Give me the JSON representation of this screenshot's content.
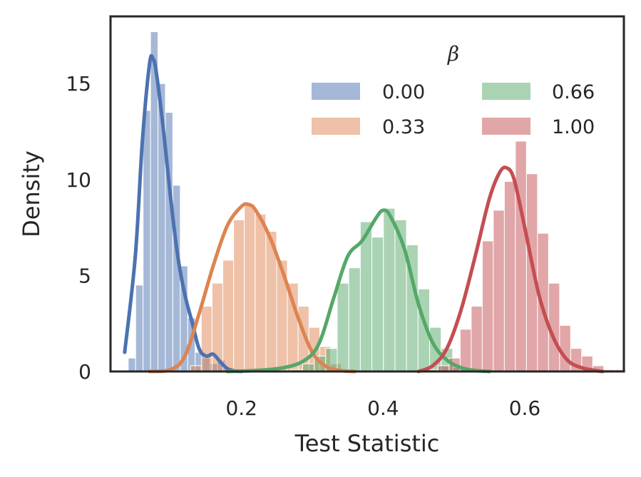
{
  "chart_data": {
    "type": "histogram",
    "xlabel": "Test Statistic",
    "ylabel": "Density",
    "xlim": [
      0.015,
      0.74
    ],
    "ylim": [
      0,
      18.5
    ],
    "xticks": [
      0.2,
      0.4,
      0.6
    ],
    "xtick_labels": [
      "0.2",
      "0.4",
      "0.6"
    ],
    "yticks": [
      0,
      5,
      10,
      15
    ],
    "ytick_labels": [
      "0",
      "5",
      "10",
      "15"
    ],
    "grid": false,
    "legend": {
      "title": "β",
      "placement": "top-right",
      "columns": 2,
      "entries": [
        "0.00",
        "0.33",
        "0.66",
        "1.00"
      ]
    },
    "series": [
      {
        "name": "0.00",
        "color": "#4c72b0",
        "bin_start": 0.04,
        "bin_width": 0.0105,
        "hist": [
          0.7,
          4.5,
          13.6,
          17.7,
          15.0,
          13.5,
          9.7,
          5.5,
          2.8,
          1.0,
          0.7,
          0.4,
          0.6,
          0.2,
          0.0,
          0.1
        ],
        "kde_x": [
          0.035,
          0.05,
          0.06,
          0.07,
          0.075,
          0.08,
          0.09,
          0.1,
          0.11,
          0.12,
          0.13,
          0.14,
          0.15,
          0.16,
          0.17,
          0.18,
          0.19,
          0.2
        ],
        "kde_y": [
          1.0,
          6.0,
          12.0,
          16.0,
          16.3,
          15.5,
          12.5,
          9.0,
          6.0,
          4.0,
          2.6,
          1.2,
          0.8,
          0.9,
          0.5,
          0.15,
          0.03,
          0.0
        ]
      },
      {
        "name": "0.33",
        "color": "#dd8452",
        "bin_start": 0.128,
        "bin_width": 0.0152,
        "hist": [
          0.3,
          3.4,
          4.6,
          5.8,
          7.9,
          8.7,
          8.2,
          7.3,
          5.8,
          4.6,
          3.4,
          2.3,
          1.3,
          0.4,
          0.1
        ],
        "kde_x": [
          0.07,
          0.1,
          0.12,
          0.14,
          0.16,
          0.18,
          0.2,
          0.21,
          0.22,
          0.24,
          0.26,
          0.28,
          0.3,
          0.32,
          0.34,
          0.36
        ],
        "kde_y": [
          0.0,
          0.1,
          0.8,
          3.0,
          5.5,
          7.6,
          8.6,
          8.7,
          8.4,
          7.0,
          5.0,
          2.8,
          1.0,
          0.25,
          0.05,
          0.0
        ]
      },
      {
        "name": "0.66",
        "color": "#55a868",
        "bin_start": 0.27,
        "bin_width": 0.0163,
        "hist": [
          0.1,
          0.4,
          0.8,
          1.2,
          4.6,
          5.4,
          7.8,
          7.0,
          8.5,
          7.9,
          6.6,
          4.3,
          2.3,
          1.2,
          0.2,
          0.1
        ],
        "kde_x": [
          0.18,
          0.22,
          0.26,
          0.29,
          0.31,
          0.33,
          0.35,
          0.37,
          0.39,
          0.4,
          0.41,
          0.43,
          0.45,
          0.47,
          0.49,
          0.51,
          0.53,
          0.55
        ],
        "kde_y": [
          0.0,
          0.05,
          0.2,
          0.6,
          1.5,
          3.8,
          6.0,
          6.8,
          8.0,
          8.4,
          8.1,
          6.4,
          3.5,
          1.5,
          0.6,
          0.2,
          0.05,
          0.0
        ]
      },
      {
        "name": "1.00",
        "color": "#c44e52",
        "bin_start": 0.462,
        "bin_width": 0.0156,
        "hist": [
          0.1,
          0.3,
          0.7,
          2.2,
          3.4,
          6.8,
          8.4,
          9.9,
          12.0,
          10.3,
          7.2,
          4.6,
          2.4,
          1.2,
          0.8,
          0.3,
          0.1,
          0.1
        ],
        "kde_x": [
          0.45,
          0.47,
          0.49,
          0.51,
          0.53,
          0.55,
          0.565,
          0.575,
          0.585,
          0.6,
          0.62,
          0.64,
          0.66,
          0.68,
          0.7,
          0.71
        ],
        "kde_y": [
          0.0,
          0.3,
          1.2,
          3.2,
          6.0,
          9.0,
          10.4,
          10.6,
          10.0,
          7.5,
          4.0,
          1.8,
          0.6,
          0.2,
          0.05,
          0.0
        ]
      }
    ]
  }
}
